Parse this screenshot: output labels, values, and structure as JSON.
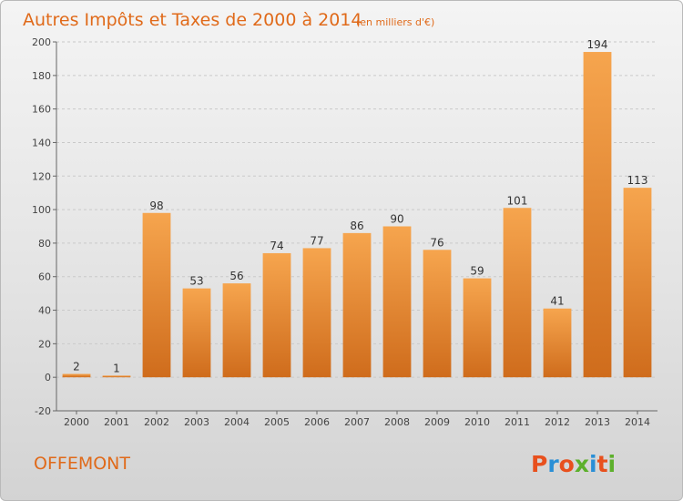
{
  "chart_data": {
    "type": "bar",
    "title": "Autres Impôts et Taxes de 2000 à 2014",
    "subtitle": "(en milliers d'€)",
    "categories": [
      "2000",
      "2001",
      "2002",
      "2003",
      "2004",
      "2005",
      "2006",
      "2007",
      "2008",
      "2009",
      "2010",
      "2011",
      "2012",
      "2013",
      "2014"
    ],
    "values": [
      2,
      1,
      98,
      53,
      56,
      74,
      77,
      86,
      90,
      76,
      59,
      101,
      41,
      194,
      113
    ],
    "data_labels": [
      "2",
      "1",
      "98",
      "53",
      "56",
      "74",
      "77",
      "86",
      "90",
      "76",
      "59",
      "101",
      "41",
      "194",
      "113"
    ],
    "yticks": [
      "-20",
      "0",
      "20",
      "40",
      "60",
      "80",
      "100",
      "120",
      "140",
      "160",
      "180",
      "200"
    ],
    "ylim": [
      -20,
      200
    ],
    "grid": "horizontal",
    "legend": "none"
  },
  "footer": {
    "commune": "OFFEMONT",
    "logo": "Proxiti"
  },
  "colors": {
    "bar_light": "#f6a54e",
    "bar_dark": "#cf6c1c",
    "accent": "#e06a1a",
    "grid": "#c9c9c9",
    "logo_letters": [
      "#e8501d",
      "#2a8fd6",
      "#e8501d",
      "#5db02c",
      "#2a8fd6",
      "#e8501d",
      "#5db02c"
    ]
  }
}
